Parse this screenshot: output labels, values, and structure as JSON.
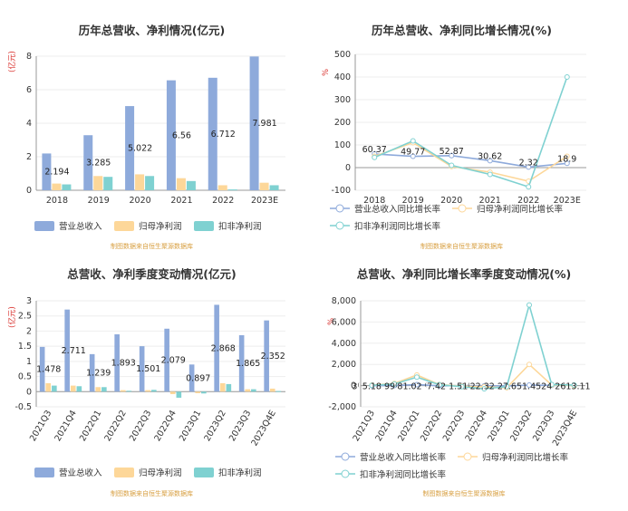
{
  "colors": {
    "revenue": "#8eaadb",
    "parent": "#fdd799",
    "deduct": "#7fd1d1"
  },
  "source_text": "制图数据来自恒生聚源数据库",
  "chart_data": [
    {
      "id": "c1",
      "type": "bar",
      "title": "历年总营收、净利情况(亿元)",
      "unit": "(亿元)",
      "categories": [
        "2018",
        "2019",
        "2020",
        "2021",
        "2022",
        "2023E"
      ],
      "series": [
        {
          "name": "营业总收入",
          "values": [
            2.194,
            3.285,
            5.022,
            6.56,
            6.712,
            7.981
          ]
        },
        {
          "name": "归母净利润",
          "values": [
            0.4,
            0.85,
            0.95,
            0.72,
            0.3,
            0.45
          ]
        },
        {
          "name": "扣非净利润",
          "values": [
            0.35,
            0.8,
            0.85,
            0.55,
            0.05,
            0.3
          ]
        }
      ],
      "data_labels": [
        "2.194",
        "3.285",
        "5.022",
        "6.56",
        "6.712",
        "7.981"
      ],
      "ylim": [
        0,
        8
      ],
      "yticks": [
        "0",
        "2",
        "4",
        "6",
        "8"
      ],
      "legend": "bottom"
    },
    {
      "id": "c2",
      "type": "line",
      "title": "历年总营收、净利同比增长情况(%)",
      "unit": "%",
      "categories": [
        "2018",
        "2019",
        "2020",
        "2021",
        "2022",
        "2023E"
      ],
      "series": [
        {
          "name": "营业总收入同比增长率",
          "values": [
            60.37,
            49.77,
            52.87,
            30.62,
            2.32,
            18.9
          ]
        },
        {
          "name": "归母净利润同比增长率",
          "values": [
            50,
            110,
            5,
            -20,
            -60,
            50
          ]
        },
        {
          "name": "扣非净利润同比增长率",
          "values": [
            45,
            118,
            10,
            -30,
            -85,
            400
          ]
        }
      ],
      "data_labels": [
        "60.37",
        "49.77",
        "52.87",
        "30.62",
        "2.32",
        "18.9"
      ],
      "ylim": [
        -100,
        500
      ],
      "yticks": [
        "-100",
        "0",
        "100",
        "200",
        "300",
        "400",
        "500"
      ],
      "legend": "bottom"
    },
    {
      "id": "c3",
      "type": "bar",
      "title": "总营收、净利季度变动情况(亿元)",
      "unit": "(亿元)",
      "categories": [
        "2021Q3",
        "2021Q4",
        "2022Q1",
        "2022Q2",
        "2022Q3",
        "2022Q4",
        "2023Q1",
        "2023Q2",
        "2023Q3",
        "2023Q4E"
      ],
      "series": [
        {
          "name": "营业总收入",
          "values": [
            1.478,
            2.711,
            1.239,
            1.893,
            1.501,
            2.079,
            0.897,
            2.868,
            1.865,
            2.352
          ]
        },
        {
          "name": "归母净利润",
          "values": [
            0.28,
            0.2,
            0.15,
            0.05,
            0.05,
            -0.08,
            -0.05,
            0.28,
            0.08,
            0.1
          ]
        },
        {
          "name": "扣非净利润",
          "values": [
            0.2,
            0.18,
            0.15,
            0.03,
            0.06,
            -0.2,
            -0.06,
            0.25,
            0.08,
            0.02
          ]
        }
      ],
      "data_labels": [
        "1.478",
        "2.711",
        "1.239",
        "1.893",
        "1.501",
        "2.079",
        "0.897",
        "2.868",
        "1.865",
        "2.352"
      ],
      "ylim": [
        -0.5,
        3
      ],
      "yticks": [
        "-0.5",
        "0",
        "0.5",
        "1",
        "1.5",
        "2",
        "2.5",
        "3"
      ],
      "legend": "bottom"
    },
    {
      "id": "c4",
      "type": "line",
      "title": "总营收、净利同比增长率季度变动情况(%)",
      "unit": "%",
      "categories": [
        "2021Q3",
        "2021Q4",
        "2022Q1",
        "2022Q2",
        "2022Q3",
        "2022Q4",
        "2023Q1",
        "2023Q2",
        "2023Q3",
        "2023Q4E"
      ],
      "series": [
        {
          "name": "营业总收入同比增长率",
          "values": [
            3,
            5.18,
            99,
            -17.42,
            1.51,
            -22.32,
            -27.65,
            51.45,
            24,
            26.11
          ]
        },
        {
          "name": "归母净利润同比增长率",
          "values": [
            50,
            200,
            1000,
            100,
            -50,
            -100,
            -200,
            2000,
            50,
            0
          ]
        },
        {
          "name": "扣非净利润同比增长率",
          "values": [
            30,
            150,
            800,
            80,
            -100,
            -300,
            -100,
            7600,
            100,
            50
          ]
        }
      ],
      "data_labels": [
        "3",
        "5.18",
        "99",
        "-17.42",
        "1.51",
        "-22.32",
        "-27.65",
        "51.45",
        "24",
        "26.11"
      ],
      "data_label_text": "3⁽ 5.18 99⁽81.02 ⁽7.42 1.51⁽22.32 27.651.4524 2613.11",
      "ylim": [
        -2000,
        8000
      ],
      "yticks": [
        "-2,000",
        "0",
        "2,000",
        "4,000",
        "6,000",
        "8,000"
      ],
      "legend": "bottom"
    }
  ]
}
